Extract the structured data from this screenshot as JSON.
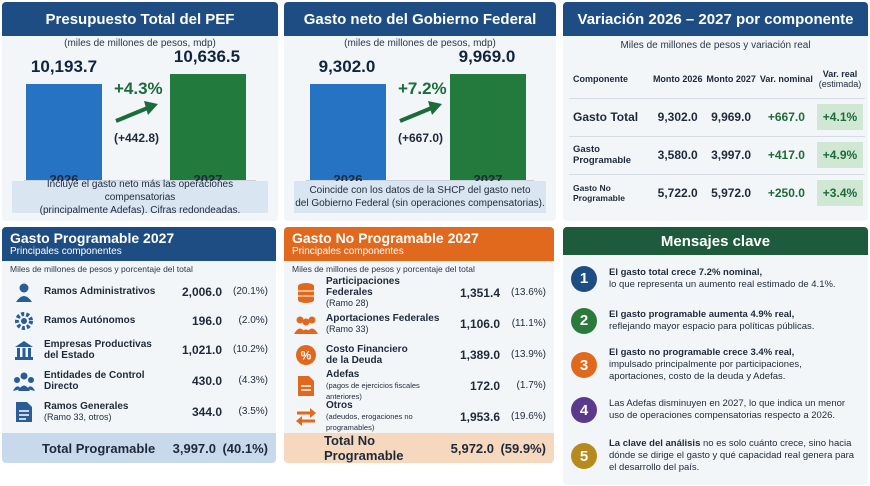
{
  "panel1": {
    "title": "Presupuesto Total del PEF",
    "subtitle": "(miles de millones de pesos, mdp)",
    "bar2026_value": "10,193.7",
    "bar2027_value": "10,636.5",
    "pct": "+4.3%",
    "abs": "(+442.8)",
    "year1": "2026",
    "year2": "2027",
    "note_line1": "Incluye el gasto neto más las operaciones compensatorias",
    "note_line2": "(principalmente Adefas). Cifras redondeadas."
  },
  "panel2": {
    "title": "Gasto neto del Gobierno Federal",
    "subtitle": "(miles de millones de pesos, mdp)",
    "bar2026_value": "9,302.0",
    "bar2027_value": "9,969.0",
    "pct": "+7.2%",
    "abs": "(+667.0)",
    "year1": "2026",
    "year2": "2027",
    "note_line1": "Coincide con los datos de la SHCP del gasto neto",
    "note_line2": "del Gobierno Federal (sin operaciones compensatorias)."
  },
  "panel3": {
    "title": "Variación 2026 – 2027 por componente",
    "caption": "Miles de millones de pesos y variación real",
    "headers": {
      "comp": "Componente",
      "m2026": "Monto 2026",
      "m2027": "Monto 2027",
      "vn": "Var. nominal",
      "vr1": "Var. real",
      "vr2": "(estimada)"
    },
    "rows": [
      {
        "comp": "Gasto Total",
        "m2026": "9,302.0",
        "m2027": "9,969.0",
        "vn": "+667.0",
        "vr": "+4.1%"
      },
      {
        "comp": "Gasto Programable",
        "m2026": "3,580.0",
        "m2027": "3,997.0",
        "vn": "+417.0",
        "vr": "+4.9%"
      },
      {
        "comp": "Gasto No Programable",
        "m2026": "5,722.0",
        "m2027": "5,972.0",
        "vn": "+250.0",
        "vr": "+3.4%"
      }
    ]
  },
  "panel4": {
    "title": "Gasto Programable 2027",
    "subtitle": "Principales componentes",
    "caption": "Miles de millones de pesos y porcentaje del total",
    "items": [
      {
        "icon": "person-icon",
        "label": "Ramos Administrativos",
        "sub": "",
        "amt": "2,006.0",
        "share": "(20.1%)"
      },
      {
        "icon": "gear-icon",
        "label": "Ramos Autónomos",
        "sub": "",
        "amt": "196.0",
        "share": "(2.0%)"
      },
      {
        "icon": "building-icon",
        "label": "Empresas Productivas",
        "label2": "del Estado",
        "sub": "",
        "amt": "1,021.0",
        "share": "(10.2%)"
      },
      {
        "icon": "group-icon",
        "label": "Entidades de Control",
        "label2": "Directo",
        "sub": "",
        "amt": "430.0",
        "share": "(4.3%)"
      },
      {
        "icon": "document-icon",
        "label": "Ramos Generales",
        "sub": "(Ramo 33, otros)",
        "amt": "344.0",
        "share": "(3.5%)"
      }
    ],
    "total_label": "Total Programable",
    "total_amt": "3,997.0",
    "total_share": "(40.1%)"
  },
  "panel5": {
    "title": "Gasto No Programable 2027",
    "subtitle": "Principales componentes",
    "caption": "Miles de millones de pesos y porcentaje del total",
    "items": [
      {
        "icon": "coins-icon",
        "label": "Participaciones Federales",
        "sub": "(Ramo 28)",
        "amt": "1,351.4",
        "share": "(13.6%)"
      },
      {
        "icon": "people-icon",
        "label": "Aportaciones Federales",
        "sub": "(Ramo 33)",
        "amt": "1,106.0",
        "share": "(11.1%)"
      },
      {
        "icon": "percent-icon",
        "label": "Costo Financiero",
        "label2": "de la Deuda",
        "sub": "",
        "amt": "1,389.0",
        "share": "(13.9%)"
      },
      {
        "icon": "file-icon",
        "label": "Adefas",
        "sub": "(pagos de ejercicios fiscales anteriores)",
        "amt": "172.0",
        "share": "(1.7%)"
      },
      {
        "icon": "exchange-icon",
        "label": "Otros",
        "sub": "(adeudos, erogaciones no programables)",
        "amt": "1,953.6",
        "share": "(19.6%)"
      }
    ],
    "total_label": "Total No Programable",
    "total_amt": "5,972.0",
    "total_share": "(59.9%)"
  },
  "panel6": {
    "title": "Mensajes clave",
    "messages": [
      {
        "n": "1",
        "color": "#1d4d82",
        "bold": "El gasto total crece 7.2% nominal,",
        "rest": "lo que representa un aumento real estimado de 4.1%."
      },
      {
        "n": "2",
        "color": "#2a7a3c",
        "bold": "El gasto programable aumenta 4.9% real,",
        "rest": "reflejando mayor espacio para políticas públicas."
      },
      {
        "n": "3",
        "color": "#e1691d",
        "bold": "El gasto no programable crece 3.4% real,",
        "rest": "impulsado principalmente por participaciones, aportaciones, costo de la deuda y Adefas."
      },
      {
        "n": "4",
        "color": "#5b3a8c",
        "bold": "",
        "rest": "Las Adefas disminuyen en 2027, lo que indica un menor uso de operaciones compensatorias respecto a 2026."
      },
      {
        "n": "5",
        "color": "#b78a1e",
        "bold": "La clave del análisis",
        "rest": " no es solo cuánto crece, sino hacia dónde se dirige el gasto y qué capacidad real genera para el desarrollo del país."
      }
    ]
  },
  "colors": {
    "blue": "#1d4d82",
    "bar_blue": "#2673c4",
    "bar_green": "#237a3d",
    "orange": "#e1691d",
    "green": "#1e5b3c"
  }
}
